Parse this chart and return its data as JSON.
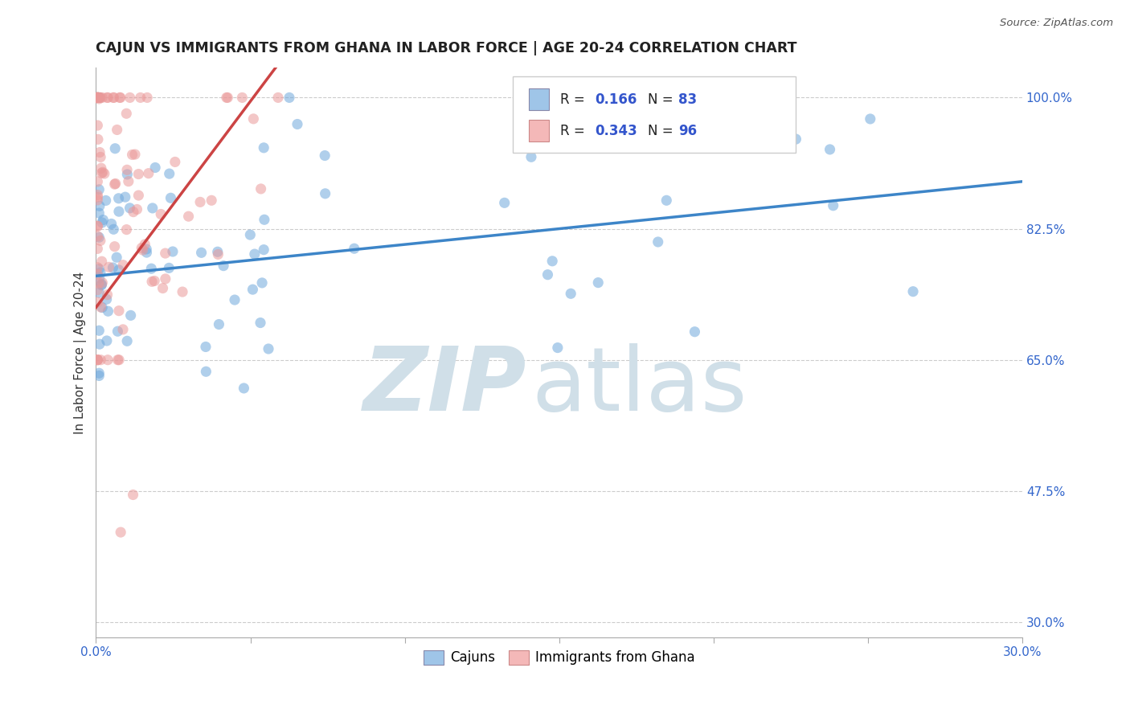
{
  "title": "CAJUN VS IMMIGRANTS FROM GHANA IN LABOR FORCE | AGE 20-24 CORRELATION CHART",
  "source": "Source: ZipAtlas.com",
  "ylabel": "In Labor Force | Age 20-24",
  "xlim": [
    0.0,
    0.3
  ],
  "ylim": [
    0.28,
    1.04
  ],
  "xticks": [
    0.0,
    0.05,
    0.1,
    0.15,
    0.2,
    0.25,
    0.3
  ],
  "xtick_labels": [
    "0.0%",
    "",
    "",
    "",
    "",
    "",
    "30.0%"
  ],
  "ytick_positions": [
    0.3,
    0.475,
    0.65,
    0.825,
    1.0
  ],
  "ytick_labels": [
    "30.0%",
    "47.5%",
    "65.0%",
    "82.5%",
    "100.0%"
  ],
  "cajun_R": 0.166,
  "cajun_N": 83,
  "ghana_R": 0.343,
  "ghana_N": 96,
  "cajun_color": "#6fa8dc",
  "ghana_color": "#ea9999",
  "trendline_cajun_color": "#3d85c8",
  "trendline_ghana_color": "#cc4444",
  "legend_box_color_cajun": "#9fc5e8",
  "legend_box_color_ghana": "#f4b8b8",
  "watermark_color": "#d0dfe8",
  "background_color": "#ffffff",
  "grid_color": "#cccccc",
  "title_color": "#222222",
  "axis_label_color": "#333333",
  "tick_color": "#3366cc",
  "cajun_trendline_intercept": 0.762,
  "cajun_trendline_slope": 0.42,
  "ghana_trendline_intercept": 0.72,
  "ghana_trendline_slope": 5.5
}
